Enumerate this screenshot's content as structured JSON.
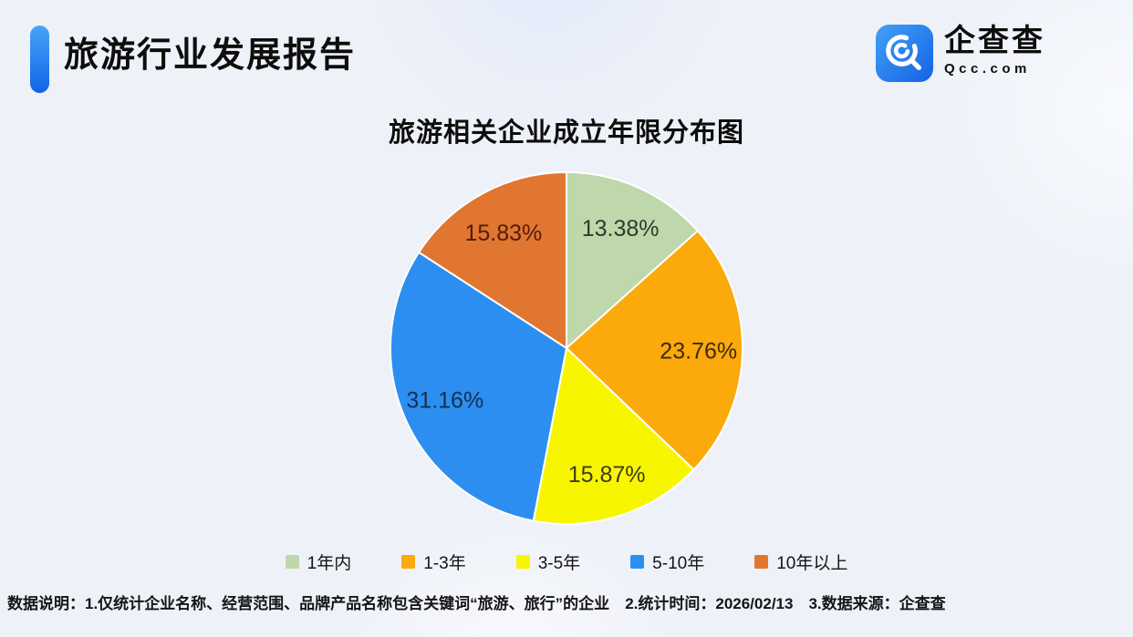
{
  "header": {
    "title": "旅游行业发展报告",
    "accent_color": "#1d7bf0"
  },
  "logo": {
    "brand": "企查查",
    "domain": "Qcc.com",
    "icon": "qcc-magnifier-q-icon",
    "icon_gradient": [
      "#41a1f6",
      "#1463e3"
    ]
  },
  "chart_data": {
    "type": "pie",
    "title": "旅游相关企业成立年限分布图",
    "categories": [
      "1年内",
      "1-3年",
      "3-5年",
      "5-10年",
      "10年以上"
    ],
    "values": [
      13.38,
      23.76,
      15.87,
      31.16,
      15.83
    ],
    "labels": [
      "13.38%",
      "23.76%",
      "15.87%",
      "31.16%",
      "15.83%"
    ],
    "unit": "%",
    "colors": [
      "#bed7ab",
      "#fba90b",
      "#f8f500",
      "#2c8ef0",
      "#e0762f"
    ],
    "label_colors": [
      "#2c3c2c",
      "#3d2a10",
      "#3c3c16",
      "#14304e",
      "#521c0e"
    ],
    "slice_border_color": "#ffffff",
    "start_angle": "top",
    "direction": "clockwise",
    "legend_position": "bottom"
  },
  "footer": {
    "label": "数据说明：",
    "note1": "1.仅统计企业名称、经营范围、品牌产品名称包含关键词“旅游、旅行”的企业",
    "note2": "2.统计时间：2026/02/13",
    "note3": "3.数据来源：企查查"
  }
}
